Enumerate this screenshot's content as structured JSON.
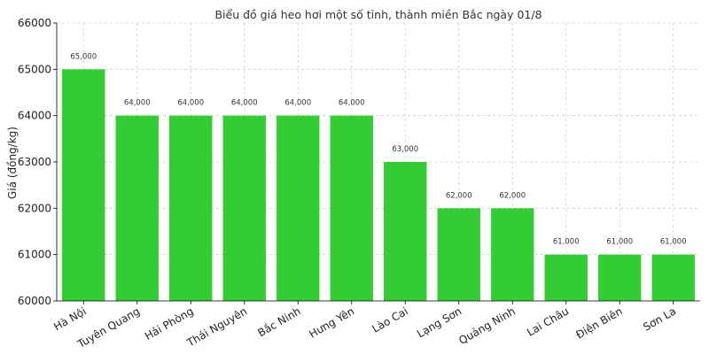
{
  "chart_data": {
    "type": "bar",
    "title": "Biểu đồ giá heo hơi một số tỉnh, thành miền Bắc ngày 01/8",
    "xlabel": "",
    "ylabel": "Giá (đồng/kg)",
    "ylim": [
      60000,
      66000
    ],
    "yticks": [
      60000,
      61000,
      62000,
      63000,
      64000,
      65000,
      66000
    ],
    "categories": [
      "Hà Nội",
      "Tuyên Quang",
      "Hải Phòng",
      "Thái Nguyên",
      "Bắc Ninh",
      "Hưng Yên",
      "Lào Cai",
      "Lạng Sơn",
      "Quảng Ninh",
      "Lai Châu",
      "Điện Biên",
      "Sơn La"
    ],
    "values": [
      65000,
      64000,
      64000,
      64000,
      64000,
      64000,
      63000,
      62000,
      62000,
      61000,
      61000,
      61000
    ],
    "data_labels": [
      "65,000",
      "64,000",
      "64,000",
      "64,000",
      "64,000",
      "64,000",
      "63,000",
      "62,000",
      "62,000",
      "61,000",
      "61,000",
      "61,000"
    ],
    "bar_color": "#33cc33",
    "grid": true,
    "legend": "none"
  }
}
